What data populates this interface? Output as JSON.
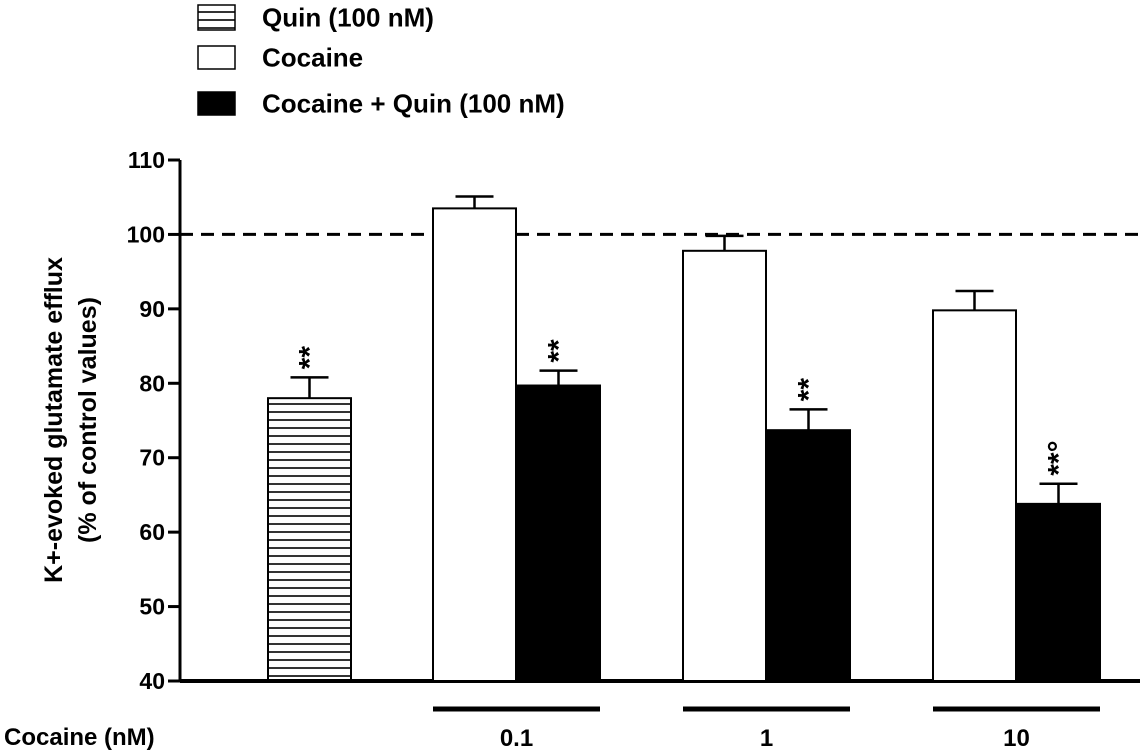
{
  "chart_data": {
    "type": "bar",
    "legend": [
      {
        "label": "Quin (100 nM)",
        "style": "hatched"
      },
      {
        "label": "Cocaine",
        "style": "open"
      },
      {
        "label": "Cocaine + Quin (100 nM)",
        "style": "filled"
      }
    ],
    "legend_position": "top-left",
    "ylabel_line1": "K+-evoked glutamate efflux",
    "ylabel_line2": "(% of control values)",
    "xlabel": "Cocaine (nM)",
    "ylim": [
      40,
      110
    ],
    "yticks": [
      "40",
      "50",
      "60",
      "70",
      "80",
      "90",
      "100",
      "110"
    ],
    "reference_line": 100,
    "grid": false,
    "groups": [
      {
        "label": "",
        "underline": false,
        "bars": [
          {
            "series": "Quin (100 nM)",
            "style": "hatched",
            "value": 78,
            "error": 2.8,
            "annotation": "**"
          }
        ]
      },
      {
        "label": "0.1",
        "underline": true,
        "bars": [
          {
            "series": "Cocaine",
            "style": "open",
            "value": 103.5,
            "error": 1.6,
            "annotation": ""
          },
          {
            "series": "Cocaine + Quin (100 nM)",
            "style": "filled",
            "value": 79.7,
            "error": 2.0,
            "annotation": "**"
          }
        ]
      },
      {
        "label": "1",
        "underline": true,
        "bars": [
          {
            "series": "Cocaine",
            "style": "open",
            "value": 97.8,
            "error": 2.0,
            "annotation": ""
          },
          {
            "series": "Cocaine + Quin (100 nM)",
            "style": "filled",
            "value": 73.7,
            "error": 2.8,
            "annotation": "**"
          }
        ]
      },
      {
        "label": "10",
        "underline": true,
        "bars": [
          {
            "series": "Cocaine",
            "style": "open",
            "value": 89.8,
            "error": 2.6,
            "annotation": ""
          },
          {
            "series": "Cocaine + Quin (100 nM)",
            "style": "filled",
            "value": 63.8,
            "error": 2.7,
            "annotation": "**°"
          }
        ]
      }
    ]
  }
}
